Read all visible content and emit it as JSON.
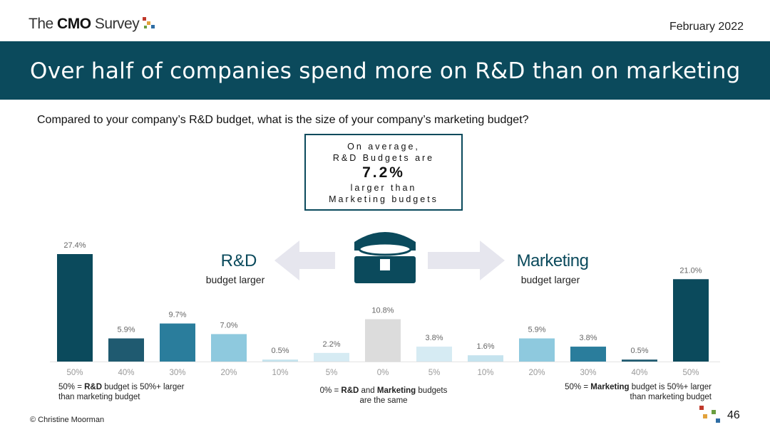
{
  "header": {
    "logo": [
      "The ",
      "CMO",
      " Survey"
    ],
    "date": "February 2022",
    "title": "Over half of companies spend more on R&D than on marketing"
  },
  "question": "Compared to your company’s R&D budget, what is the size of your company’s marketing budget?",
  "callout": [
    "On average,",
    "R&D Budgets are",
    "7.2%",
    "larger than",
    "Marketing budgets"
  ],
  "left_label": {
    "title": "R&D",
    "subtitle": "budget larger"
  },
  "right_label": {
    "title": "Marketing",
    "subtitle": "budget larger"
  },
  "notes": {
    "left": [
      "50% = ",
      "R&D",
      " budget is 50%+ larger than marketing budget"
    ],
    "center": [
      "0% = ",
      "R&D",
      " and ",
      "Marketing",
      " budgets are the same"
    ],
    "right": [
      "50% = ",
      "Marketing",
      " budget is 50%+ larger than marketing budget"
    ]
  },
  "footer": {
    "credit": "© Christine Moorman",
    "page": "46"
  },
  "chart_data": {
    "type": "bar",
    "categories": [
      "50%",
      "40%",
      "30%",
      "20%",
      "10%",
      "5%",
      "0%",
      "5%",
      "10%",
      "20%",
      "30%",
      "40%",
      "50%"
    ],
    "values": [
      27.4,
      5.9,
      9.7,
      7.0,
      0.5,
      2.2,
      10.8,
      3.8,
      1.6,
      5.9,
      3.8,
      0.5,
      21.0
    ],
    "value_labels": [
      "27.4%",
      "5.9%",
      "9.7%",
      "7.0%",
      "0.5%",
      "2.2%",
      "10.8%",
      "3.8%",
      "1.6%",
      "5.9%",
      "3.8%",
      "0.5%",
      "21.0%"
    ],
    "colors": [
      "#0b4a5c",
      "#1f5a70",
      "#2a7d9c",
      "#8ec9de",
      "#c5e3ee",
      "#d6ebf3",
      "#dcdcdc",
      "#d6ebf3",
      "#c5e3ee",
      "#8ec9de",
      "#2a7d9c",
      "#1f5a70",
      "#0b4a5c"
    ]
  }
}
